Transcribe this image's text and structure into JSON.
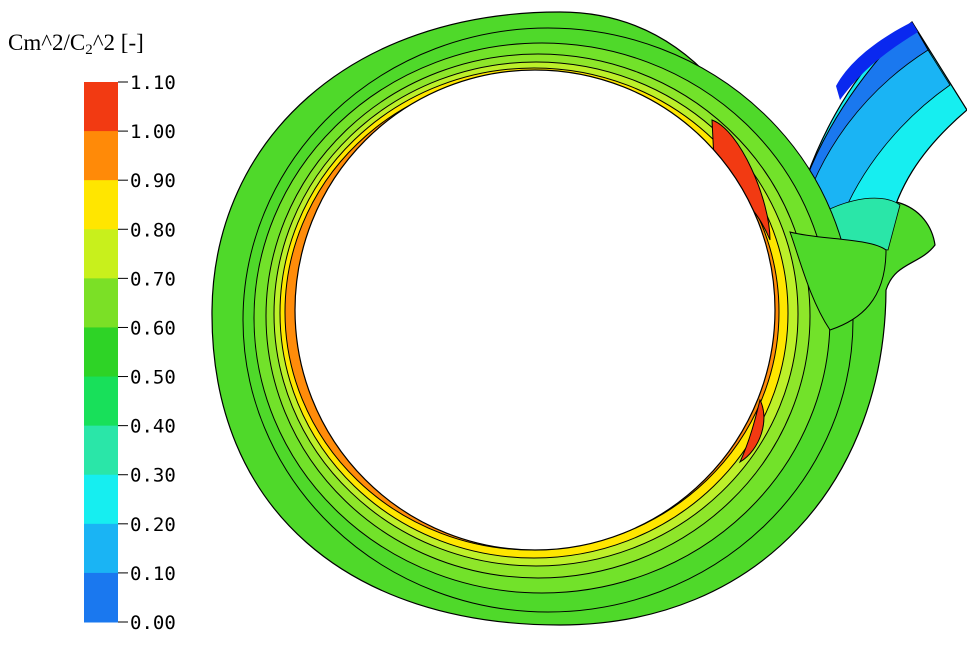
{
  "colorbar": {
    "title_main": "Cm^2/C",
    "title_sub": "2",
    "title_tail": "^2 [-]",
    "ticks": [
      "1.10",
      "1.00",
      "0.90",
      "0.80",
      "0.70",
      "0.60",
      "0.50",
      "0.40",
      "0.30",
      "0.20",
      "0.10",
      "0.00"
    ],
    "band_colors": [
      "#f23a12",
      "#ff8a08",
      "#ffe600",
      "#c8f01c",
      "#7be026",
      "#2ed326",
      "#18e05a",
      "#2ae6a8",
      "#16eef0",
      "#1ab4f4",
      "#1a78ef",
      "#0a28ef"
    ]
  },
  "colors": {
    "outer_green": "#4fd92a",
    "green_mid": "#72e22a",
    "yellow_green": "#bdf02a",
    "yellow": "#ffe600",
    "orange": "#ff8c0a",
    "red": "#f23a12",
    "cyan": "#16eef0",
    "blue_light": "#1ab4f4",
    "blue": "#1a78ef",
    "blue_dark": "#0a28ef",
    "teal": "#2ae6a8",
    "contour": "#000000"
  }
}
